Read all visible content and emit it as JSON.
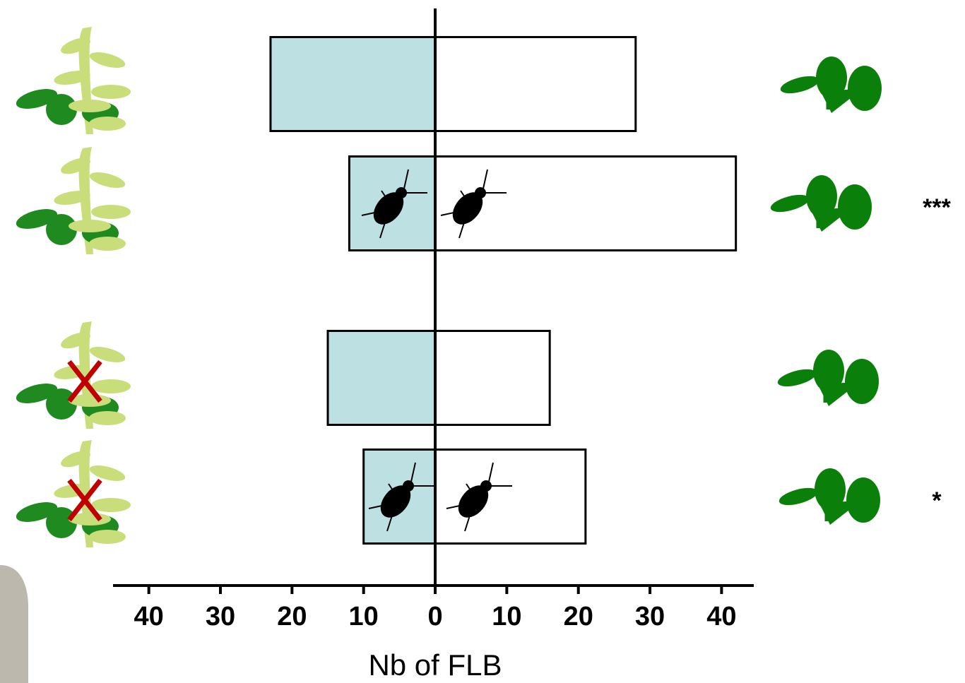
{
  "chart_data": {
    "type": "diverging-bar",
    "xlabel": "Nb of FLB",
    "xlim": [
      -45,
      44.5
    ],
    "xticks": [
      {
        "value": -40,
        "label": "40"
      },
      {
        "value": -30,
        "label": "30"
      },
      {
        "value": -20,
        "label": "20"
      },
      {
        "value": -10,
        "label": "10"
      },
      0,
      10,
      20,
      30,
      40
    ],
    "categories": [
      null,
      null,
      null,
      null
    ],
    "series": [
      {
        "color": "#bde0e3",
        "values": [
          -23,
          -12,
          -15,
          -10
        ]
      },
      {
        "color": "#ffffff",
        "values": [
          28,
          42,
          16,
          21
        ]
      }
    ],
    "annotations": [
      null,
      "***",
      null,
      "*"
    ]
  }
}
